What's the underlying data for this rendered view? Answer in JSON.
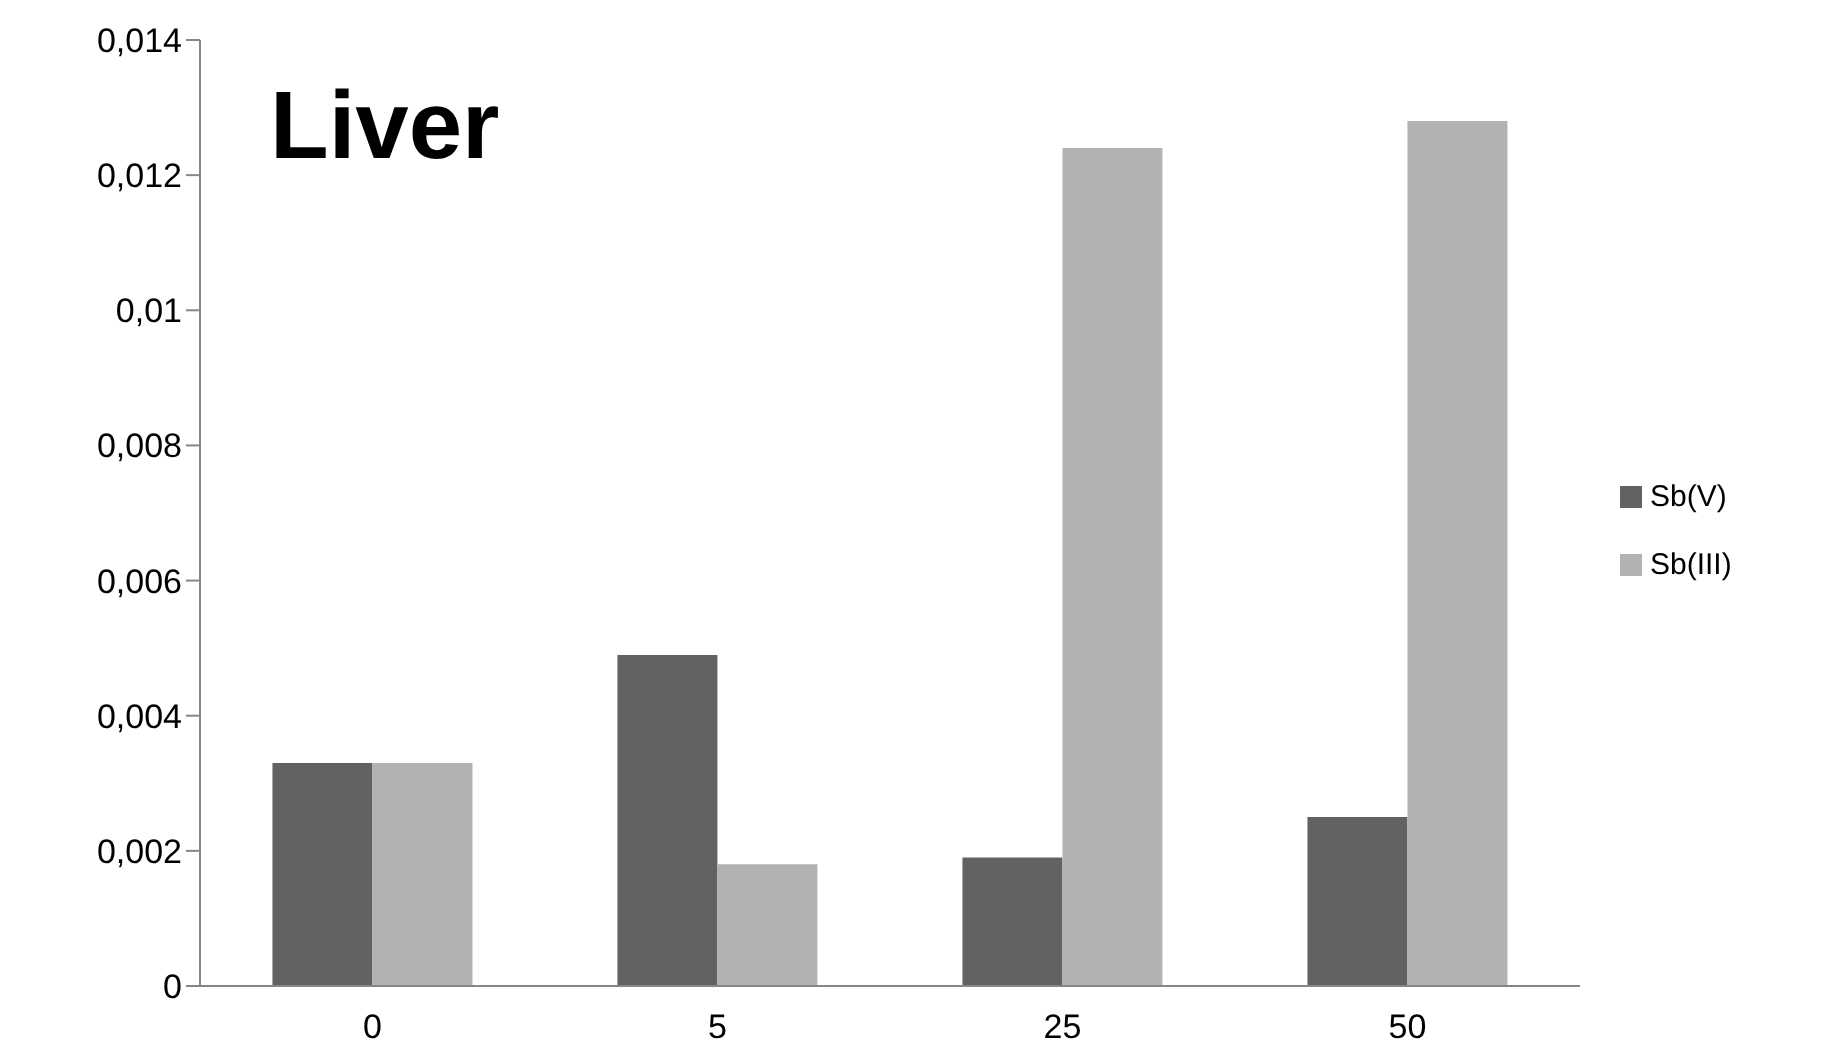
{
  "chart_data": {
    "type": "bar",
    "title": "Liver",
    "categories": [
      "0",
      "5",
      "25",
      "50"
    ],
    "series": [
      {
        "name": "Sb(V)",
        "color": "#626262",
        "values": [
          0.0033,
          0.0049,
          0.0019,
          0.0025
        ]
      },
      {
        "name": "Sb(III)",
        "color": "#b2b2b2",
        "values": [
          0.0033,
          0.0018,
          0.0124,
          0.0128
        ]
      }
    ],
    "ylim": [
      0,
      0.014
    ],
    "yticks": [
      0,
      {
        "value": 0.002,
        "label": "0,002"
      },
      {
        "value": 0.004,
        "label": "0,004"
      },
      {
        "value": 0.006,
        "label": "0,006"
      },
      {
        "value": 0.008,
        "label": "0,008"
      },
      {
        "value": 0.01,
        "label": "0,01"
      },
      {
        "value": 0.012,
        "label": "0,012"
      },
      {
        "value": 0.014,
        "label": "0,014"
      }
    ],
    "grid": false,
    "legend": "right"
  }
}
